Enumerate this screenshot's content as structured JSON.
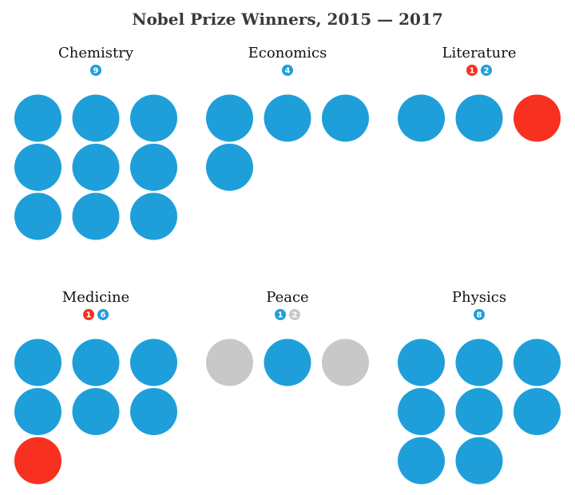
{
  "chart_data": {
    "type": "dot-grid",
    "title": "Nobel Prize Winners, 2015 — 2017",
    "colors": {
      "blue": "#1e9fda",
      "red": "#f8301f",
      "gray": "#c8c8c8"
    },
    "panels": [
      {
        "category": "Chemistry",
        "counts": [
          {
            "color": "blue",
            "value": 9
          }
        ]
      },
      {
        "category": "Economics",
        "counts": [
          {
            "color": "blue",
            "value": 4
          }
        ]
      },
      {
        "category": "Literature",
        "counts": [
          {
            "color": "red",
            "value": 1
          },
          {
            "color": "blue",
            "value": 2
          }
        ]
      },
      {
        "category": "Medicine",
        "counts": [
          {
            "color": "red",
            "value": 1
          },
          {
            "color": "blue",
            "value": 6
          }
        ]
      },
      {
        "category": "Peace",
        "counts": [
          {
            "color": "blue",
            "value": 1
          },
          {
            "color": "gray",
            "value": 2
          }
        ]
      },
      {
        "category": "Physics",
        "counts": [
          {
            "color": "blue",
            "value": 8
          }
        ]
      }
    ],
    "dots": [
      [
        "blue",
        "blue",
        "blue",
        "blue",
        "blue",
        "blue",
        "blue",
        "blue",
        "blue"
      ],
      [
        "blue",
        "blue",
        "blue",
        "blue"
      ],
      [
        "blue",
        "blue",
        "red"
      ],
      [
        "blue",
        "blue",
        "blue",
        "blue",
        "blue",
        "blue",
        "red"
      ],
      [
        "gray",
        "blue",
        "gray"
      ],
      [
        "blue",
        "blue",
        "blue",
        "blue",
        "blue",
        "blue",
        "blue",
        "blue"
      ]
    ]
  }
}
